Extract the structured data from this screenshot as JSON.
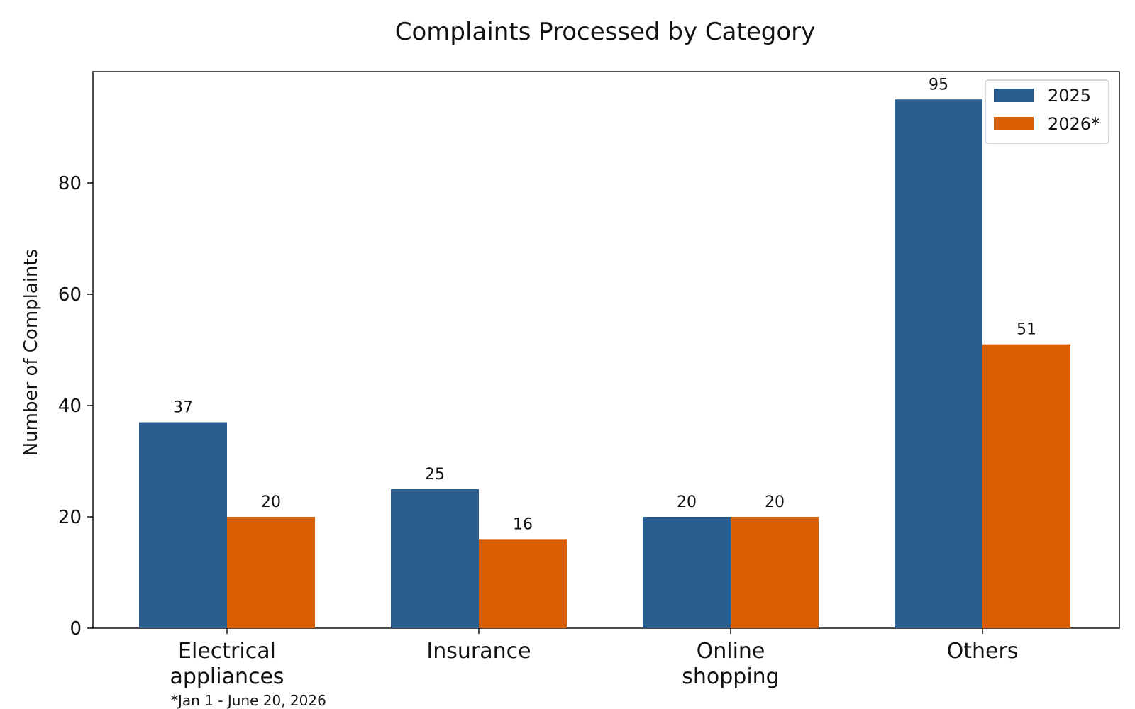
{
  "chart_data": {
    "type": "bar",
    "title": "Complaints Processed by Category",
    "xlabel": "",
    "ylabel": "Number of Complaints",
    "categories": [
      [
        "Electrical",
        "appliances"
      ],
      [
        "Insurance"
      ],
      [
        "Online",
        "shopping"
      ],
      [
        "Others"
      ]
    ],
    "series": [
      {
        "name": "2025",
        "color": "#2c5d8f",
        "values": [
          37,
          25,
          20,
          95
        ]
      },
      {
        "name": "2026*",
        "color": "#d95f02",
        "values": [
          20,
          16,
          20,
          51
        ]
      }
    ],
    "ylim": [
      0,
      100
    ],
    "yticks": [
      0,
      20,
      40,
      60,
      80
    ],
    "grid": false,
    "legend_position": "top-right",
    "footnote": "*Jan 1 - June 20, 2026"
  }
}
